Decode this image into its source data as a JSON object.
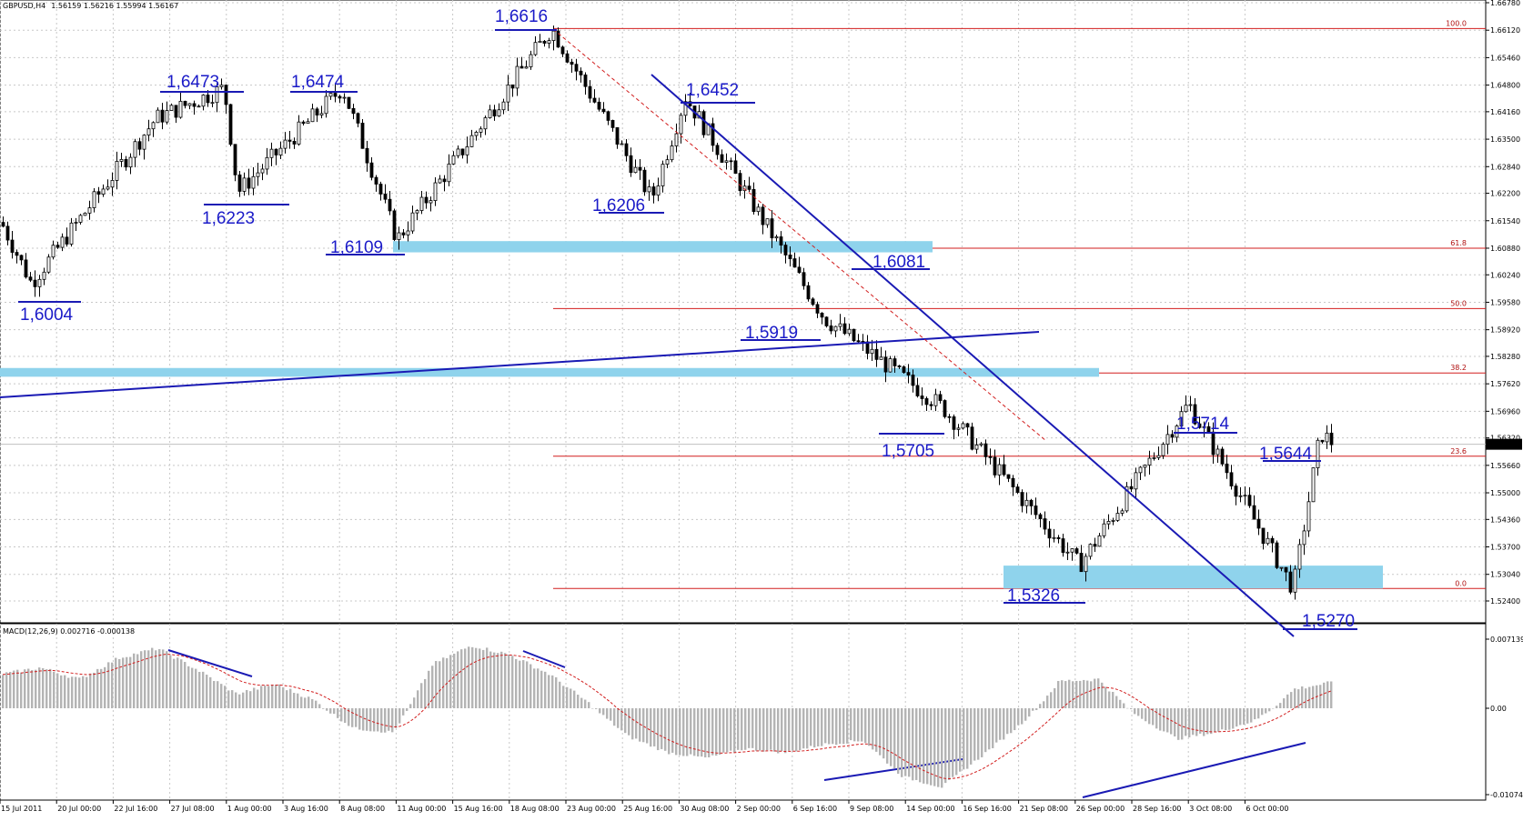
{
  "header": {
    "title": "GBPUSD,H4",
    "ohlc": "1.56159 1.56216 1.55994 1.56167"
  },
  "macd_header": {
    "title": "MACD(12,26,9) 0.002716 -0.000138"
  },
  "price_axis": {
    "labels": [
      "1.66780",
      "1.66120",
      "1.65460",
      "1.64800",
      "1.64160",
      "1.63500",
      "1.62840",
      "1.62200",
      "1.61540",
      "1.60880",
      "1.60240",
      "1.59580",
      "1.58920",
      "1.58280",
      "1.57620",
      "1.56960",
      "1.56320",
      "1.55660",
      "1.55000",
      "1.54360",
      "1.53700",
      "1.53040",
      "1.52400"
    ],
    "values": [
      1.6678,
      1.6612,
      1.6546,
      1.648,
      1.6416,
      1.635,
      1.6284,
      1.622,
      1.6154,
      1.6088,
      1.6024,
      1.5958,
      1.5892,
      1.5828,
      1.5762,
      1.5696,
      1.5632,
      1.5566,
      1.55,
      1.5436,
      1.537,
      1.5304,
      1.524
    ],
    "current_price": "1.56167",
    "current_value": 1.56167
  },
  "macd_axis": {
    "labels": [
      "0.007139",
      "0.00",
      "-0.01074"
    ],
    "values": [
      0.007139,
      0,
      -0.01074
    ]
  },
  "time_axis": {
    "labels": [
      "15 Jul 2011",
      "20 Jul 00:00",
      "22 Jul 16:00",
      "27 Jul 08:00",
      "1 Aug 00:00",
      "3 Aug 16:00",
      "8 Aug 08:00",
      "11 Aug 00:00",
      "15 Aug 16:00",
      "18 Aug 08:00",
      "23 Aug 00:00",
      "25 Aug 16:00",
      "30 Aug 08:00",
      "2 Sep 00:00",
      "6 Sep 16:00",
      "9 Sep 08:00",
      "14 Sep 00:00",
      "16 Sep 16:00",
      "21 Sep 08:00",
      "26 Sep 00:00",
      "28 Sep 16:00",
      "3 Oct 08:00",
      "6 Oct 00:00"
    ]
  },
  "fibonacci": {
    "levels": [
      {
        "label": "100.0",
        "price": 1.6616
      },
      {
        "label": "61.8",
        "price": 1.6088
      },
      {
        "label": "50.0",
        "price": 1.5943
      },
      {
        "label": "38.2",
        "price": 1.5788
      },
      {
        "label": "23.6",
        "price": 1.5588
      },
      {
        "label": "0.0",
        "price": 1.527
      }
    ]
  },
  "annotations": [
    {
      "label": "1,6616",
      "price": 1.6616
    },
    {
      "label": "1,6473",
      "price": 1.6473
    },
    {
      "label": "1,6474",
      "price": 1.6474
    },
    {
      "label": "1,6452",
      "price": 1.6452
    },
    {
      "label": "1,6223",
      "price": 1.6223
    },
    {
      "label": "1,6206",
      "price": 1.6206
    },
    {
      "label": "1,6109",
      "price": 1.6109
    },
    {
      "label": "1,6081",
      "price": 1.6081
    },
    {
      "label": "1,6004",
      "price": 1.6004
    },
    {
      "label": "1,5919",
      "price": 1.5919
    },
    {
      "label": "1,5714",
      "price": 1.5714
    },
    {
      "label": "1,5705",
      "price": 1.5705
    },
    {
      "label": "1,5644",
      "price": 1.5644
    },
    {
      "label": "1,5326",
      "price": 1.5326
    },
    {
      "label": "1,5270",
      "price": 1.527
    }
  ],
  "chart_data": {
    "type": "candlestick",
    "symbol": "GBPUSD",
    "timeframe": "H4",
    "ylim": [
      1.5222,
      1.6685
    ],
    "swing_points": [
      {
        "t": "15 Jul 2011",
        "price": 1.615
      },
      {
        "t": "19 Jul",
        "price": 1.6004
      },
      {
        "t": "22 Jul",
        "price": 1.64
      },
      {
        "t": "27 Jul",
        "price": 1.6473
      },
      {
        "t": "1 Aug",
        "price": 1.6223
      },
      {
        "t": "3 Aug",
        "price": 1.6474
      },
      {
        "t": "9 Aug",
        "price": 1.6109
      },
      {
        "t": "18 Aug",
        "price": 1.6616
      },
      {
        "t": "24 Aug",
        "price": 1.6206
      },
      {
        "t": "26 Aug",
        "price": 1.6452
      },
      {
        "t": "6 Sep",
        "price": 1.5919
      },
      {
        "t": "12 Sep",
        "price": 1.5705
      },
      {
        "t": "20 Sep",
        "price": 1.5326
      },
      {
        "t": "28 Sep",
        "price": 1.5714
      },
      {
        "t": "5 Oct",
        "price": 1.527
      },
      {
        "t": "7 Oct",
        "price": 1.5644
      },
      {
        "t": "7 Oct 12:00",
        "price": 1.5617
      }
    ],
    "macd_points": [
      0.0035,
      0.0042,
      0.003,
      0.0052,
      0.0062,
      0.004,
      0.0015,
      0.0025,
      0.0008,
      -0.0025,
      -0.003,
      0.0045,
      0.0065,
      0.0055,
      0.0035,
      0.0005,
      -0.0035,
      -0.0055,
      -0.0062,
      -0.005,
      -0.0055,
      -0.0045,
      -0.004,
      -0.0085,
      -0.0098,
      -0.006,
      -0.002,
      0.0028,
      0.003,
      -0.001,
      -0.0038,
      -0.003,
      -0.0015,
      0.002,
      0.0027
    ]
  }
}
